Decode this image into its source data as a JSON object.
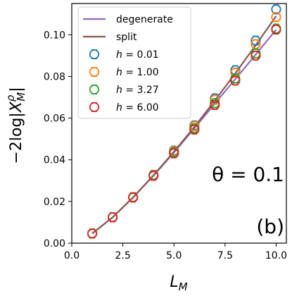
{
  "chart_data": {
    "type": "line",
    "panel_label": "(b)",
    "annotation": "θ = 0.1",
    "xlabel": "L_M",
    "ylabel": "−2log|X_M^ρ|",
    "xlim": [
      0.0,
      10.5
    ],
    "ylim": [
      0.0,
      0.115
    ],
    "xticks": [
      "0.0",
      "2.5",
      "5.0",
      "7.5",
      "10.0"
    ],
    "xtick_values": [
      0,
      2.5,
      5,
      7.5,
      10
    ],
    "yticks": [
      "0.00",
      "0.02",
      "0.04",
      "0.06",
      "0.08",
      "0.10"
    ],
    "ytick_values": [
      0,
      0.02,
      0.04,
      0.06,
      0.08,
      0.1
    ],
    "grid": false,
    "legend_position": "top-left",
    "lines": [
      {
        "name": "degenerate",
        "color": "#9467bd",
        "x": [
          1,
          2,
          3,
          4,
          5,
          6,
          7,
          8,
          9,
          10
        ],
        "y": [
          0.0046,
          0.0124,
          0.0219,
          0.0324,
          0.0435,
          0.0551,
          0.067,
          0.0787,
          0.0905,
          0.1025
        ]
      },
      {
        "name": "split",
        "color": "#8c564b",
        "x": [
          1,
          2,
          3,
          4,
          5,
          6,
          7,
          8,
          9,
          10
        ],
        "y": [
          0.0046,
          0.0124,
          0.022,
          0.0326,
          0.0439,
          0.0558,
          0.0684,
          0.0815,
          0.095,
          0.109
        ]
      }
    ],
    "series": [
      {
        "name": "h = 0.01",
        "label_var": "h",
        "label_val": "0.01",
        "color": "#1f77b4",
        "x": [
          1,
          2,
          3,
          4,
          5,
          6,
          7,
          8,
          9,
          10
        ],
        "y": [
          0.0047,
          0.0125,
          0.0221,
          0.0328,
          0.0444,
          0.0565,
          0.0695,
          0.083,
          0.0972,
          0.1122
        ]
      },
      {
        "name": "h = 1.00",
        "label_var": "h",
        "label_val": "1.00",
        "color": "#ff7f0e",
        "x": [
          1,
          2,
          3,
          4,
          5,
          6,
          7,
          8,
          9,
          10
        ],
        "y": [
          0.0047,
          0.0125,
          0.0221,
          0.0327,
          0.0441,
          0.0562,
          0.0688,
          0.0818,
          0.0955,
          0.1085
        ]
      },
      {
        "name": "h = 3.27",
        "label_var": "h",
        "label_val": "3.27",
        "color": "#2ca02c",
        "x": [
          1,
          2,
          3,
          4,
          5,
          6,
          7,
          8,
          9,
          10
        ],
        "y": [
          0.0046,
          0.0124,
          0.022,
          0.0325,
          0.0436,
          0.0552,
          0.0672,
          0.079,
          0.091,
          0.103
        ]
      },
      {
        "name": "h = 6.00",
        "label_var": "h",
        "label_val": "6.00",
        "color": "#d62728",
        "x": [
          1,
          2,
          3,
          4,
          5,
          6,
          7,
          8,
          9,
          10
        ],
        "y": [
          0.0046,
          0.0124,
          0.0219,
          0.0323,
          0.0431,
          0.0545,
          0.0663,
          0.078,
          0.09,
          0.1025
        ]
      }
    ]
  }
}
